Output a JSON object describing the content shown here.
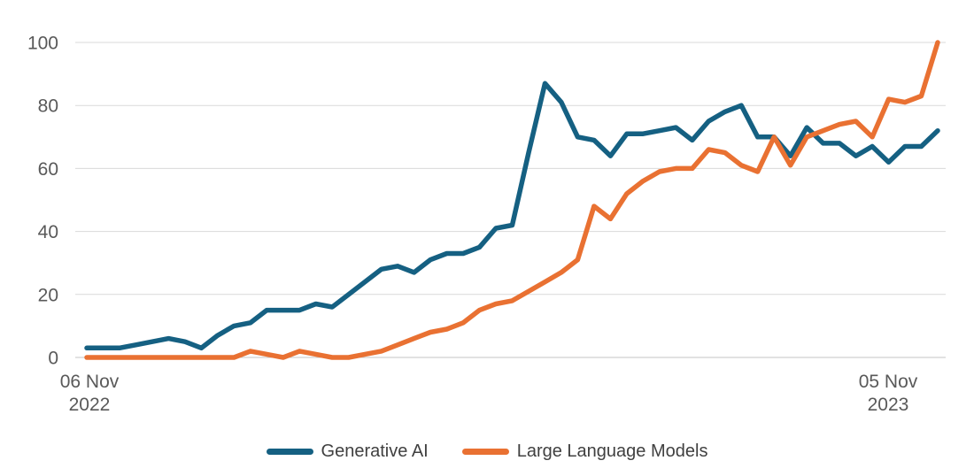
{
  "chart_data": {
    "type": "line",
    "title": "",
    "grid": true,
    "x_axis": {
      "points": 53,
      "start_tick": [
        "06 Nov",
        "2022"
      ],
      "end_tick": [
        "05 Nov",
        "2023"
      ]
    },
    "y_axis": {
      "range": [
        0,
        100
      ],
      "ticks": [
        0,
        20,
        40,
        60,
        80,
        100
      ]
    },
    "series": [
      {
        "name": "Generative AI",
        "color": "#156082",
        "values": [
          3,
          3,
          3,
          4,
          5,
          6,
          5,
          3,
          7,
          10,
          11,
          15,
          15,
          15,
          17,
          16,
          20,
          24,
          28,
          29,
          27,
          31,
          33,
          33,
          35,
          41,
          42,
          65,
          87,
          81,
          70,
          69,
          64,
          71,
          71,
          72,
          73,
          69,
          75,
          78,
          80,
          70,
          70,
          64,
          73,
          68,
          68,
          64,
          67,
          62,
          67,
          67,
          72
        ]
      },
      {
        "name": "Large Language Models",
        "color": "#E97132",
        "values": [
          0,
          0,
          0,
          0,
          0,
          0,
          0,
          0,
          0,
          0,
          2,
          1,
          0,
          2,
          1,
          0,
          0,
          1,
          2,
          4,
          6,
          8,
          9,
          11,
          15,
          17,
          18,
          21,
          24,
          27,
          31,
          48,
          44,
          52,
          56,
          59,
          60,
          60,
          66,
          65,
          61,
          59,
          70,
          61,
          70,
          72,
          74,
          75,
          70,
          82,
          81,
          83,
          100
        ]
      }
    ],
    "legend": {
      "position": "bottom",
      "items": [
        {
          "label": "Generative AI",
          "color": "#156082"
        },
        {
          "label": "Large Language Models",
          "color": "#E97132"
        }
      ]
    },
    "colors": {
      "background": "#FFFFFF",
      "gridline": "#D9D9D9",
      "axis_line": "#C6C6C6",
      "tick_label": "#595959",
      "legend_label": "#404040"
    }
  }
}
